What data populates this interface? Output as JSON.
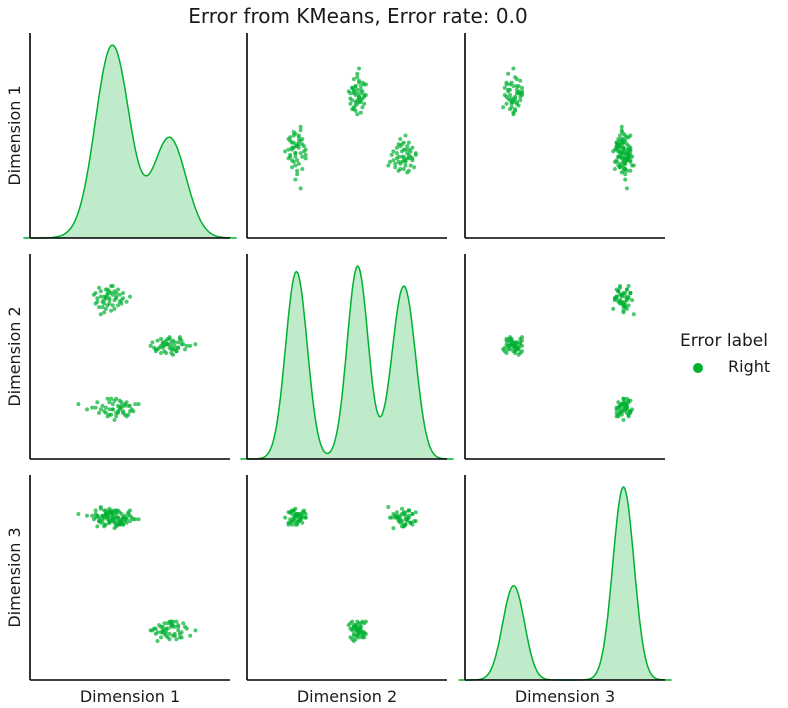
{
  "title": "Error from KMeans, Error rate: 0.0",
  "legend": {
    "title": "Error label",
    "entries": [
      {
        "label": "Right",
        "color": "#00b030"
      }
    ]
  },
  "chart_data": {
    "type": "scatter",
    "subtype": "pairplot",
    "dimensions": [
      "Dimension 1",
      "Dimension 2",
      "Dimension 3"
    ],
    "diagonal": "kde",
    "off_diagonal": "scatter",
    "color": "#00b030",
    "legend_position": "right",
    "grid": false,
    "hue": "Error label",
    "hue_levels": [
      "Right"
    ],
    "clusters": [
      {
        "count": 50,
        "points": [
          [
            0.32,
            0.78,
            0.84
          ],
          [
            0.35,
            0.84,
            0.8
          ],
          [
            0.3,
            0.86,
            0.88
          ],
          [
            0.38,
            0.8,
            0.82
          ],
          [
            0.42,
            0.83,
            0.79
          ],
          [
            0.36,
            0.88,
            0.86
          ],
          [
            0.33,
            0.74,
            0.9
          ],
          [
            0.4,
            0.85,
            0.83
          ],
          [
            0.44,
            0.81,
            0.81
          ],
          [
            0.37,
            0.79,
            0.85
          ],
          [
            0.31,
            0.83,
            0.79
          ],
          [
            0.39,
            0.9,
            0.87
          ],
          [
            0.46,
            0.86,
            0.84
          ],
          [
            0.34,
            0.81,
            0.82
          ],
          [
            0.41,
            0.77,
            0.78
          ],
          [
            0.36,
            0.83,
            0.86
          ],
          [
            0.29,
            0.85,
            0.83
          ],
          [
            0.43,
            0.88,
            0.8
          ],
          [
            0.38,
            0.82,
            0.89
          ],
          [
            0.35,
            0.8,
            0.84
          ],
          [
            0.5,
            0.84,
            0.85
          ],
          [
            0.33,
            0.87,
            0.81
          ],
          [
            0.4,
            0.79,
            0.87
          ],
          [
            0.37,
            0.85,
            0.83
          ],
          [
            0.45,
            0.82,
            0.86
          ],
          [
            0.32,
            0.89,
            0.82
          ],
          [
            0.39,
            0.76,
            0.84
          ],
          [
            0.42,
            0.86,
            0.88
          ],
          [
            0.36,
            0.84,
            0.8
          ],
          [
            0.48,
            0.81,
            0.83
          ],
          [
            0.34,
            0.78,
            0.85
          ],
          [
            0.41,
            0.87,
            0.81
          ],
          [
            0.38,
            0.83,
            0.87
          ],
          [
            0.3,
            0.8,
            0.84
          ],
          [
            0.44,
            0.85,
            0.82
          ],
          [
            0.37,
            0.88,
            0.86
          ],
          [
            0.35,
            0.82,
            0.79
          ],
          [
            0.43,
            0.79,
            0.84
          ],
          [
            0.39,
            0.86,
            0.88
          ],
          [
            0.33,
            0.84,
            0.83
          ],
          [
            0.46,
            0.83,
            0.8
          ],
          [
            0.36,
            0.77,
            0.86
          ],
          [
            0.4,
            0.9,
            0.82
          ],
          [
            0.31,
            0.81,
            0.85
          ],
          [
            0.42,
            0.84,
            0.87
          ],
          [
            0.38,
            0.87,
            0.81
          ],
          [
            0.35,
            0.75,
            0.84
          ],
          [
            0.45,
            0.8,
            0.83
          ],
          [
            0.37,
            0.86,
            0.85
          ],
          [
            0.41,
            0.82,
            0.82
          ]
        ]
      },
      {
        "count": 50,
        "points": [
          [
            0.7,
            0.56,
            0.18
          ],
          [
            0.74,
            0.58,
            0.22
          ],
          [
            0.68,
            0.52,
            0.16
          ],
          [
            0.78,
            0.55,
            0.2
          ],
          [
            0.72,
            0.6,
            0.24
          ],
          [
            0.66,
            0.54,
            0.14
          ],
          [
            0.8,
            0.57,
            0.19
          ],
          [
            0.75,
            0.51,
            0.23
          ],
          [
            0.71,
            0.59,
            0.17
          ],
          [
            0.64,
            0.55,
            0.21
          ],
          [
            0.77,
            0.53,
            0.15
          ],
          [
            0.73,
            0.61,
            0.25
          ],
          [
            0.69,
            0.57,
            0.19
          ],
          [
            0.82,
            0.54,
            0.22
          ],
          [
            0.76,
            0.58,
            0.18
          ],
          [
            0.62,
            0.56,
            0.2
          ],
          [
            0.74,
            0.52,
            0.24
          ],
          [
            0.79,
            0.6,
            0.16
          ],
          [
            0.67,
            0.55,
            0.23
          ],
          [
            0.72,
            0.57,
            0.21
          ],
          [
            0.85,
            0.56,
            0.17
          ],
          [
            0.7,
            0.53,
            0.2
          ],
          [
            0.75,
            0.59,
            0.25
          ],
          [
            0.65,
            0.54,
            0.18
          ],
          [
            0.78,
            0.58,
            0.22
          ],
          [
            0.73,
            0.55,
            0.15
          ],
          [
            0.68,
            0.6,
            0.19
          ],
          [
            0.81,
            0.57,
            0.24
          ],
          [
            0.71,
            0.52,
            0.21
          ],
          [
            0.76,
            0.56,
            0.17
          ],
          [
            0.63,
            0.58,
            0.2
          ],
          [
            0.74,
            0.54,
            0.23
          ],
          [
            0.79,
            0.61,
            0.18
          ],
          [
            0.69,
            0.55,
            0.22
          ],
          [
            0.72,
            0.57,
            0.16
          ],
          [
            0.77,
            0.53,
            0.25
          ],
          [
            0.66,
            0.59,
            0.19
          ],
          [
            0.83,
            0.56,
            0.21
          ],
          [
            0.7,
            0.58,
            0.24
          ],
          [
            0.75,
            0.54,
            0.17
          ],
          [
            0.88,
            0.57,
            0.2
          ],
          [
            0.68,
            0.56,
            0.22
          ],
          [
            0.73,
            0.6,
            0.18
          ],
          [
            0.78,
            0.55,
            0.23
          ],
          [
            0.71,
            0.57,
            0.19
          ],
          [
            0.65,
            0.53,
            0.21
          ],
          [
            0.8,
            0.59,
            0.16
          ],
          [
            0.74,
            0.56,
            0.25
          ],
          [
            0.69,
            0.58,
            0.2
          ],
          [
            0.76,
            0.54,
            0.22
          ]
        ]
      },
      {
        "count": 50,
        "points": [
          [
            0.4,
            0.2,
            0.86
          ],
          [
            0.45,
            0.22,
            0.82
          ],
          [
            0.36,
            0.18,
            0.88
          ],
          [
            0.48,
            0.24,
            0.84
          ],
          [
            0.42,
            0.16,
            0.8
          ],
          [
            0.3,
            0.21,
            0.86
          ],
          [
            0.52,
            0.19,
            0.83
          ],
          [
            0.44,
            0.25,
            0.87
          ],
          [
            0.38,
            0.17,
            0.81
          ],
          [
            0.47,
            0.23,
            0.85
          ],
          [
            0.33,
            0.2,
            0.89
          ],
          [
            0.41,
            0.14,
            0.84
          ],
          [
            0.5,
            0.22,
            0.82
          ],
          [
            0.39,
            0.26,
            0.86
          ],
          [
            0.46,
            0.18,
            0.8
          ],
          [
            0.28,
            0.21,
            0.85
          ],
          [
            0.43,
            0.19,
            0.88
          ],
          [
            0.55,
            0.23,
            0.83
          ],
          [
            0.37,
            0.16,
            0.87
          ],
          [
            0.45,
            0.24,
            0.81
          ],
          [
            0.4,
            0.2,
            0.85
          ],
          [
            0.32,
            0.18,
            0.82
          ],
          [
            0.49,
            0.22,
            0.86
          ],
          [
            0.42,
            0.26,
            0.84
          ],
          [
            0.35,
            0.19,
            0.88
          ],
          [
            0.47,
            0.17,
            0.83
          ],
          [
            0.44,
            0.21,
            0.8
          ],
          [
            0.2,
            0.23,
            0.86
          ],
          [
            0.51,
            0.2,
            0.84
          ],
          [
            0.38,
            0.24,
            0.87
          ],
          [
            0.43,
            0.18,
            0.82
          ],
          [
            0.34,
            0.22,
            0.85
          ],
          [
            0.48,
            0.16,
            0.81
          ],
          [
            0.41,
            0.25,
            0.88
          ],
          [
            0.46,
            0.19,
            0.84
          ],
          [
            0.36,
            0.21,
            0.86
          ],
          [
            0.53,
            0.23,
            0.83
          ],
          [
            0.39,
            0.17,
            0.87
          ],
          [
            0.44,
            0.2,
            0.8
          ],
          [
            0.31,
            0.24,
            0.85
          ],
          [
            0.47,
            0.22,
            0.82
          ],
          [
            0.42,
            0.18,
            0.86
          ],
          [
            0.37,
            0.26,
            0.84
          ],
          [
            0.5,
            0.19,
            0.88
          ],
          [
            0.45,
            0.21,
            0.81
          ],
          [
            0.25,
            0.2,
            0.85
          ],
          [
            0.4,
            0.23,
            0.83
          ],
          [
            0.49,
            0.17,
            0.87
          ],
          [
            0.43,
            0.22,
            0.84
          ],
          [
            0.38,
            0.2,
            0.82
          ]
        ]
      }
    ]
  }
}
